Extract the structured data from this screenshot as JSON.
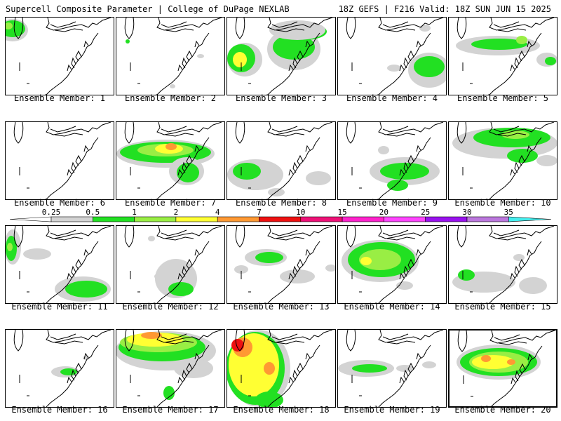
{
  "header": {
    "left": "Supercell Composite Parameter | College of DuPage NEXLAB",
    "right": "18Z GEFS | F216 Valid: 18Z SUN JUN 15 2025"
  },
  "colorbar": {
    "labels": [
      "0.25",
      "0.5",
      "1",
      "2",
      "4",
      "7",
      "10",
      "15",
      "20",
      "25",
      "30",
      "35"
    ],
    "colors": [
      "#d3d3d3",
      "#22e022",
      "#99ee44",
      "#ffff33",
      "#ff9933",
      "#ee1111",
      "#ee1177",
      "#ff22cc",
      "#ff44ff",
      "#9911ee",
      "#bb77dd",
      "#44eeee"
    ]
  },
  "panels": [
    {
      "label": "Ensemble Member: 1",
      "blobs": [
        {
          "c": 0,
          "x": 10,
          "y": 18,
          "rx": 22,
          "ry": 16
        },
        {
          "c": 1,
          "x": 10,
          "y": 16,
          "rx": 18,
          "ry": 12
        },
        {
          "c": 2,
          "x": 4,
          "y": 12,
          "rx": 6,
          "ry": 5
        }
      ]
    },
    {
      "label": "Ensemble Member: 2",
      "blobs": [
        {
          "c": 0,
          "x": 120,
          "y": 55,
          "rx": 5,
          "ry": 3
        },
        {
          "c": 1,
          "x": 16,
          "y": 34,
          "rx": 3,
          "ry": 3
        },
        {
          "c": 0,
          "x": 80,
          "y": 98,
          "rx": 4,
          "ry": 3
        }
      ]
    },
    {
      "label": "Ensemble Member: 3",
      "blobs": [
        {
          "c": 0,
          "x": 25,
          "y": 60,
          "rx": 25,
          "ry": 24
        },
        {
          "c": 1,
          "x": 20,
          "y": 58,
          "rx": 20,
          "ry": 20
        },
        {
          "c": 3,
          "x": 18,
          "y": 60,
          "rx": 10,
          "ry": 11
        },
        {
          "c": 0,
          "x": 95,
          "y": 45,
          "rx": 38,
          "ry": 30
        },
        {
          "c": 1,
          "x": 95,
          "y": 42,
          "rx": 30,
          "ry": 18
        },
        {
          "c": 1,
          "x": 110,
          "y": 20,
          "rx": 32,
          "ry": 12
        },
        {
          "c": 0,
          "x": 100,
          "y": 18,
          "rx": 40,
          "ry": 14
        }
      ]
    },
    {
      "label": "Ensemble Member: 4",
      "blobs": [
        {
          "c": 0,
          "x": 130,
          "y": 75,
          "rx": 30,
          "ry": 25
        },
        {
          "c": 1,
          "x": 130,
          "y": 70,
          "rx": 22,
          "ry": 15
        },
        {
          "c": 0,
          "x": 80,
          "y": 72,
          "rx": 10,
          "ry": 5
        },
        {
          "c": 0,
          "x": 124,
          "y": 15,
          "rx": 8,
          "ry": 5
        }
      ]
    },
    {
      "label": "Ensemble Member: 5",
      "blobs": [
        {
          "c": 0,
          "x": 70,
          "y": 40,
          "rx": 60,
          "ry": 14
        },
        {
          "c": 1,
          "x": 72,
          "y": 38,
          "rx": 40,
          "ry": 8
        },
        {
          "c": 2,
          "x": 104,
          "y": 32,
          "rx": 8,
          "ry": 6
        },
        {
          "c": 0,
          "x": 140,
          "y": 60,
          "rx": 15,
          "ry": 10
        },
        {
          "c": 1,
          "x": 145,
          "y": 62,
          "rx": 8,
          "ry": 6
        }
      ]
    },
    {
      "label": "Ensemble Member: 6",
      "blobs": []
    },
    {
      "label": "Ensemble Member: 7",
      "blobs": [
        {
          "c": 0,
          "x": 70,
          "y": 45,
          "rx": 70,
          "ry": 20
        },
        {
          "c": 1,
          "x": 70,
          "y": 43,
          "rx": 65,
          "ry": 15
        },
        {
          "c": 2,
          "x": 70,
          "y": 40,
          "rx": 40,
          "ry": 9
        },
        {
          "c": 3,
          "x": 75,
          "y": 38,
          "rx": 20,
          "ry": 7
        },
        {
          "c": 4,
          "x": 78,
          "y": 35,
          "rx": 8,
          "ry": 5
        },
        {
          "c": 0,
          "x": 100,
          "y": 70,
          "rx": 25,
          "ry": 20
        },
        {
          "c": 1,
          "x": 102,
          "y": 72,
          "rx": 16,
          "ry": 14
        }
      ]
    },
    {
      "label": "Ensemble Member: 8",
      "blobs": [
        {
          "c": 0,
          "x": 40,
          "y": 75,
          "rx": 40,
          "ry": 22
        },
        {
          "c": 1,
          "x": 28,
          "y": 70,
          "rx": 20,
          "ry": 12
        },
        {
          "c": 0,
          "x": 130,
          "y": 80,
          "rx": 18,
          "ry": 10
        },
        {
          "c": 0,
          "x": 70,
          "y": 100,
          "rx": 12,
          "ry": 6
        }
      ]
    },
    {
      "label": "Ensemble Member: 9",
      "blobs": [
        {
          "c": 0,
          "x": 95,
          "y": 70,
          "rx": 50,
          "ry": 20
        },
        {
          "c": 1,
          "x": 95,
          "y": 70,
          "rx": 35,
          "ry": 12
        },
        {
          "c": 1,
          "x": 85,
          "y": 90,
          "rx": 15,
          "ry": 8
        },
        {
          "c": 0,
          "x": 65,
          "y": 40,
          "rx": 8,
          "ry": 6
        }
      ]
    },
    {
      "label": "Ensemble Member: 10",
      "blobs": [
        {
          "c": 0,
          "x": 80,
          "y": 30,
          "rx": 75,
          "ry": 22
        },
        {
          "c": 1,
          "x": 90,
          "y": 22,
          "rx": 55,
          "ry": 14
        },
        {
          "c": 2,
          "x": 95,
          "y": 18,
          "rx": 20,
          "ry": 6
        },
        {
          "c": 1,
          "x": 105,
          "y": 48,
          "rx": 22,
          "ry": 10
        },
        {
          "c": 0,
          "x": 140,
          "y": 55,
          "rx": 15,
          "ry": 8
        }
      ]
    },
    {
      "label": "Ensemble Member: 11",
      "blobs": [
        {
          "c": 0,
          "x": 10,
          "y": 30,
          "rx": 12,
          "ry": 25
        },
        {
          "c": 1,
          "x": 8,
          "y": 32,
          "rx": 8,
          "ry": 18
        },
        {
          "c": 2,
          "x": 6,
          "y": 30,
          "rx": 4,
          "ry": 6
        },
        {
          "c": 0,
          "x": 110,
          "y": 90,
          "rx": 40,
          "ry": 18
        },
        {
          "c": 1,
          "x": 115,
          "y": 90,
          "rx": 30,
          "ry": 12
        },
        {
          "c": 0,
          "x": 45,
          "y": 40,
          "rx": 20,
          "ry": 8
        }
      ]
    },
    {
      "label": "Ensemble Member: 12",
      "blobs": [
        {
          "c": 0,
          "x": 85,
          "y": 75,
          "rx": 30,
          "ry": 28
        },
        {
          "c": 1,
          "x": 92,
          "y": 90,
          "rx": 18,
          "ry": 10
        },
        {
          "c": 0,
          "x": 50,
          "y": 18,
          "rx": 5,
          "ry": 4
        },
        {
          "c": 0,
          "x": 60,
          "y": 72,
          "rx": 6,
          "ry": 4
        }
      ]
    },
    {
      "label": "Ensemble Member: 13",
      "blobs": [
        {
          "c": 0,
          "x": 55,
          "y": 45,
          "rx": 30,
          "ry": 12
        },
        {
          "c": 1,
          "x": 60,
          "y": 45,
          "rx": 20,
          "ry": 8
        },
        {
          "c": 0,
          "x": 20,
          "y": 62,
          "rx": 10,
          "ry": 6
        },
        {
          "c": 0,
          "x": 100,
          "y": 72,
          "rx": 25,
          "ry": 10
        },
        {
          "c": 0,
          "x": 148,
          "y": 60,
          "rx": 8,
          "ry": 5
        }
      ]
    },
    {
      "label": "Ensemble Member: 14",
      "blobs": [
        {
          "c": 0,
          "x": 60,
          "y": 50,
          "rx": 55,
          "ry": 30
        },
        {
          "c": 1,
          "x": 62,
          "y": 48,
          "rx": 48,
          "ry": 25
        },
        {
          "c": 2,
          "x": 60,
          "y": 48,
          "rx": 30,
          "ry": 15
        },
        {
          "c": 3,
          "x": 40,
          "y": 50,
          "rx": 8,
          "ry": 6
        },
        {
          "c": 0,
          "x": 95,
          "y": 85,
          "rx": 12,
          "ry": 6
        }
      ]
    },
    {
      "label": "Ensemble Member: 15",
      "blobs": [
        {
          "c": 0,
          "x": 50,
          "y": 80,
          "rx": 45,
          "ry": 15
        },
        {
          "c": 1,
          "x": 25,
          "y": 70,
          "rx": 12,
          "ry": 8
        },
        {
          "c": 0,
          "x": 120,
          "y": 85,
          "rx": 20,
          "ry": 12
        },
        {
          "c": 0,
          "x": 100,
          "y": 45,
          "rx": 8,
          "ry": 5
        }
      ]
    },
    {
      "label": "Ensemble Member: 16",
      "blobs": [
        {
          "c": 0,
          "x": 85,
          "y": 60,
          "rx": 20,
          "ry": 8
        },
        {
          "c": 1,
          "x": 90,
          "y": 60,
          "rx": 12,
          "ry": 5
        },
        {
          "c": 0,
          "x": 115,
          "y": 40,
          "rx": 5,
          "ry": 3
        }
      ]
    },
    {
      "label": "Ensemble Member: 17",
      "blobs": [
        {
          "c": 0,
          "x": 70,
          "y": 30,
          "rx": 72,
          "ry": 28
        },
        {
          "c": 1,
          "x": 65,
          "y": 25,
          "rx": 62,
          "ry": 20
        },
        {
          "c": 2,
          "x": 60,
          "y": 18,
          "rx": 55,
          "ry": 14
        },
        {
          "c": 3,
          "x": 55,
          "y": 14,
          "rx": 40,
          "ry": 10
        },
        {
          "c": 4,
          "x": 50,
          "y": 8,
          "rx": 15,
          "ry": 5
        },
        {
          "c": 0,
          "x": 110,
          "y": 55,
          "rx": 28,
          "ry": 14
        },
        {
          "c": 1,
          "x": 75,
          "y": 90,
          "rx": 8,
          "ry": 10
        }
      ]
    },
    {
      "label": "Ensemble Member: 18",
      "blobs": [
        {
          "c": 0,
          "x": 45,
          "y": 55,
          "rx": 45,
          "ry": 55
        },
        {
          "c": 1,
          "x": 40,
          "y": 55,
          "rx": 42,
          "ry": 52
        },
        {
          "c": 3,
          "x": 38,
          "y": 50,
          "rx": 36,
          "ry": 45
        },
        {
          "c": 4,
          "x": 22,
          "y": 25,
          "rx": 14,
          "ry": 14
        },
        {
          "c": 5,
          "x": 15,
          "y": 22,
          "rx": 9,
          "ry": 9
        },
        {
          "c": 4,
          "x": 60,
          "y": 55,
          "rx": 8,
          "ry": 9
        },
        {
          "c": 1,
          "x": 60,
          "y": 100,
          "rx": 20,
          "ry": 12
        }
      ]
    },
    {
      "label": "Ensemble Member: 19",
      "blobs": [
        {
          "c": 0,
          "x": 40,
          "y": 55,
          "rx": 40,
          "ry": 12
        },
        {
          "c": 1,
          "x": 45,
          "y": 55,
          "rx": 25,
          "ry": 6
        },
        {
          "c": 0,
          "x": 95,
          "y": 55,
          "rx": 12,
          "ry": 5
        },
        {
          "c": 0,
          "x": 130,
          "y": 50,
          "rx": 10,
          "ry": 5
        }
      ]
    },
    {
      "label": "Ensemble Member: 20",
      "blobs": [
        {
          "c": 0,
          "x": 70,
          "y": 45,
          "rx": 60,
          "ry": 25
        },
        {
          "c": 1,
          "x": 70,
          "y": 45,
          "rx": 55,
          "ry": 20
        },
        {
          "c": 2,
          "x": 70,
          "y": 45,
          "rx": 42,
          "ry": 15
        },
        {
          "c": 3,
          "x": 62,
          "y": 45,
          "rx": 30,
          "ry": 10
        },
        {
          "c": 4,
          "x": 52,
          "y": 40,
          "rx": 7,
          "ry": 5
        },
        {
          "c": 4,
          "x": 88,
          "y": 45,
          "rx": 6,
          "ry": 4
        }
      ]
    }
  ]
}
